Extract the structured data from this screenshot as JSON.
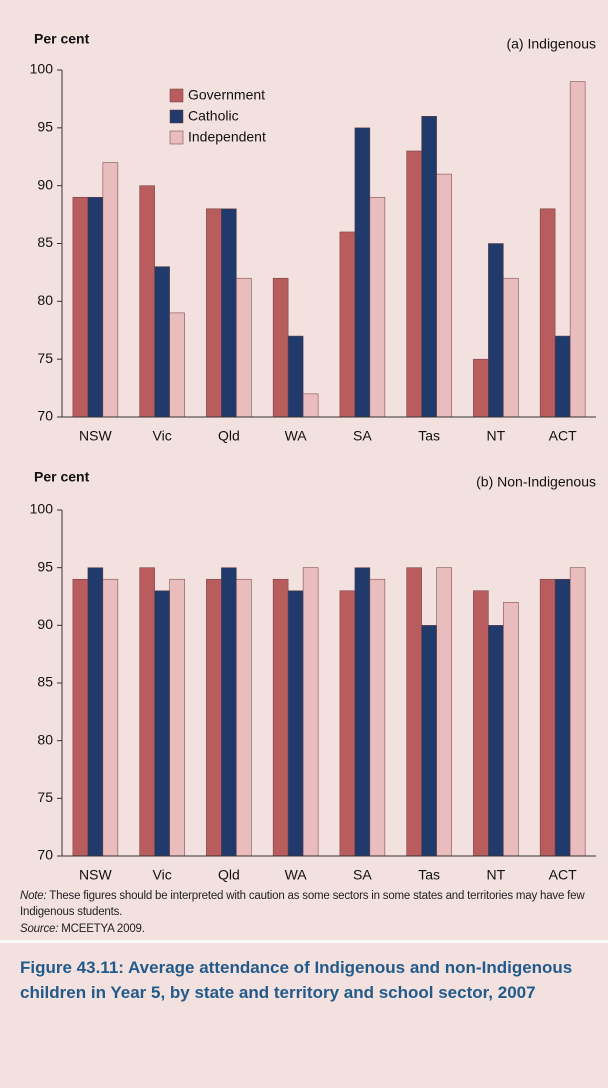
{
  "chart_data": [
    {
      "type": "bar",
      "subtitle": "(a) Indigenous",
      "y_label": "Per cent",
      "categories": [
        "NSW",
        "Vic",
        "Qld",
        "WA",
        "SA",
        "Tas",
        "NT",
        "ACT"
      ],
      "series": [
        {
          "name": "Government",
          "color": "#b85c5e",
          "values": [
            89,
            90,
            88,
            82,
            86,
            93,
            75,
            88
          ]
        },
        {
          "name": "Catholic",
          "color": "#1f3a6b",
          "values": [
            89,
            83,
            88,
            77,
            95,
            96,
            85,
            77
          ]
        },
        {
          "name": "Independent",
          "color": "#e9bdbd",
          "values": [
            92,
            79,
            82,
            72,
            89,
            91,
            82,
            99
          ]
        }
      ],
      "ylim": [
        70,
        100
      ],
      "yticks": [
        70,
        75,
        80,
        85,
        90,
        95,
        100
      ],
      "legend": "upper-left"
    },
    {
      "type": "bar",
      "subtitle": "(b) Non-Indigenous",
      "y_label": "Per cent",
      "categories": [
        "NSW",
        "Vic",
        "Qld",
        "WA",
        "SA",
        "Tas",
        "NT",
        "ACT"
      ],
      "series": [
        {
          "color": "#b85c5e",
          "values": [
            94,
            95,
            94,
            94,
            93,
            95,
            93,
            94
          ]
        },
        {
          "color": "#1f3a6b",
          "values": [
            95,
            93,
            95,
            93,
            95,
            90,
            90,
            94
          ]
        },
        {
          "color": "#e9bdbd",
          "values": [
            94,
            94,
            94,
            95,
            94,
            95,
            92,
            95
          ]
        }
      ],
      "ylim": [
        70,
        100
      ],
      "yticks": [
        70,
        75,
        80,
        85,
        90,
        95,
        100
      ]
    }
  ],
  "note": {
    "label": "Note:",
    "text": "These figures should be interpreted with caution as some sectors in some states and territories may have few Indigenous students."
  },
  "source": {
    "label": "Source:",
    "text": "MCEETYA 2009."
  },
  "caption": "Figure 43.11: Average attendance of Indigenous and non-Indigenous children in Year 5, by state and territory and school sector, 2007"
}
